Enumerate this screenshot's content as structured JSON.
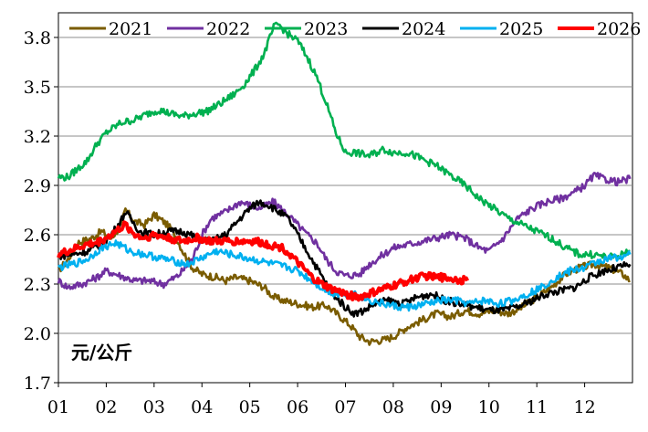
{
  "chart_data": {
    "type": "line",
    "title": "",
    "xlabel": "",
    "ylabel": "",
    "unit_label": "元/公斤",
    "x_ticks": [
      "01",
      "02",
      "03",
      "04",
      "05",
      "06",
      "07",
      "08",
      "09",
      "10",
      "11",
      "12"
    ],
    "x_range": [
      1,
      13
    ],
    "y_ticks": [
      "1.7",
      "2.0",
      "2.3",
      "2.6",
      "2.9",
      "3.2",
      "3.5",
      "3.8"
    ],
    "ylim": [
      1.7,
      3.95
    ],
    "grid": "horizontal",
    "legend": "top",
    "series": [
      {
        "name": "2021",
        "color": "#7a5c00",
        "x": [
          1.0,
          1.2,
          1.4,
          1.7,
          1.9,
          2.1,
          2.3,
          2.4,
          2.6,
          2.8,
          3.0,
          3.2,
          3.4,
          3.6,
          3.8,
          4.0,
          4.3,
          4.5,
          4.7,
          5.0,
          5.3,
          5.5,
          5.7,
          6.0,
          6.3,
          6.6,
          6.9,
          7.1,
          7.3,
          7.5,
          7.8,
          8.0,
          8.3,
          8.6,
          8.9,
          9.2,
          9.5,
          9.8,
          10.1,
          10.4,
          10.7,
          11.0,
          11.3,
          11.6,
          11.9,
          12.2,
          12.5,
          12.8,
          12.95
        ],
        "y": [
          2.38,
          2.45,
          2.55,
          2.58,
          2.62,
          2.58,
          2.65,
          2.75,
          2.68,
          2.66,
          2.72,
          2.68,
          2.62,
          2.5,
          2.4,
          2.36,
          2.34,
          2.32,
          2.34,
          2.32,
          2.28,
          2.22,
          2.2,
          2.18,
          2.16,
          2.17,
          2.1,
          2.05,
          1.98,
          1.95,
          1.96,
          1.98,
          2.04,
          2.08,
          2.12,
          2.1,
          2.14,
          2.12,
          2.14,
          2.12,
          2.16,
          2.22,
          2.28,
          2.36,
          2.4,
          2.42,
          2.4,
          2.36,
          2.32
        ]
      },
      {
        "name": "2022",
        "color": "#7030a0",
        "x": [
          1.0,
          1.2,
          1.5,
          1.8,
          2.0,
          2.3,
          2.6,
          2.9,
          3.2,
          3.5,
          3.8,
          4.0,
          4.2,
          4.5,
          4.8,
          5.0,
          5.2,
          5.5,
          5.8,
          6.0,
          6.2,
          6.4,
          6.6,
          6.8,
          7.0,
          7.3,
          7.5,
          7.8,
          8.0,
          8.3,
          8.6,
          8.9,
          9.2,
          9.5,
          9.8,
          10.0,
          10.3,
          10.6,
          10.9,
          11.2,
          11.5,
          11.8,
          12.0,
          12.2,
          12.4,
          12.7,
          12.95
        ],
        "y": [
          2.32,
          2.28,
          2.3,
          2.34,
          2.38,
          2.35,
          2.32,
          2.32,
          2.3,
          2.35,
          2.45,
          2.6,
          2.7,
          2.74,
          2.8,
          2.78,
          2.76,
          2.8,
          2.72,
          2.66,
          2.6,
          2.55,
          2.45,
          2.38,
          2.35,
          2.36,
          2.42,
          2.48,
          2.52,
          2.54,
          2.56,
          2.58,
          2.6,
          2.58,
          2.52,
          2.5,
          2.58,
          2.7,
          2.76,
          2.8,
          2.82,
          2.86,
          2.9,
          2.96,
          2.94,
          2.92,
          2.94
        ]
      },
      {
        "name": "2023",
        "color": "#00b050",
        "x": [
          1.0,
          1.2,
          1.4,
          1.6,
          1.8,
          2.0,
          2.3,
          2.6,
          2.9,
          3.1,
          3.3,
          3.6,
          3.9,
          4.1,
          4.4,
          4.7,
          4.9,
          5.1,
          5.3,
          5.4,
          5.5,
          5.6,
          5.8,
          6.0,
          6.2,
          6.4,
          6.6,
          6.8,
          7.0,
          7.2,
          7.5,
          7.8,
          8.0,
          8.3,
          8.6,
          8.9,
          9.2,
          9.5,
          9.8,
          10.1,
          10.4,
          10.7,
          11.0,
          11.3,
          11.6,
          11.9,
          12.2,
          12.5,
          12.8,
          12.95
        ],
        "y": [
          2.95,
          2.95,
          3.0,
          3.05,
          3.15,
          3.22,
          3.28,
          3.3,
          3.34,
          3.36,
          3.34,
          3.32,
          3.34,
          3.35,
          3.4,
          3.46,
          3.52,
          3.6,
          3.7,
          3.78,
          3.86,
          3.88,
          3.82,
          3.78,
          3.68,
          3.56,
          3.4,
          3.22,
          3.1,
          3.1,
          3.08,
          3.12,
          3.1,
          3.1,
          3.06,
          3.02,
          2.96,
          2.9,
          2.82,
          2.76,
          2.7,
          2.66,
          2.62,
          2.58,
          2.52,
          2.48,
          2.48,
          2.46,
          2.48,
          2.5
        ]
      },
      {
        "name": "2024",
        "color": "#000000",
        "x": [
          1.0,
          1.3,
          1.6,
          1.9,
          2.1,
          2.3,
          2.4,
          2.5,
          2.7,
          3.0,
          3.3,
          3.6,
          3.9,
          4.2,
          4.5,
          4.8,
          5.0,
          5.2,
          5.4,
          5.6,
          5.8,
          6.0,
          6.2,
          6.4,
          6.6,
          6.8,
          7.0,
          7.2,
          7.4,
          7.6,
          7.9,
          8.2,
          8.5,
          8.8,
          9.1,
          9.4,
          9.7,
          10.0,
          10.3,
          10.6,
          10.9,
          11.2,
          11.5,
          11.8,
          12.1,
          12.4,
          12.7,
          12.95
        ],
        "y": [
          2.47,
          2.48,
          2.5,
          2.54,
          2.6,
          2.68,
          2.74,
          2.7,
          2.62,
          2.6,
          2.62,
          2.62,
          2.58,
          2.56,
          2.6,
          2.7,
          2.76,
          2.8,
          2.78,
          2.74,
          2.7,
          2.6,
          2.5,
          2.4,
          2.3,
          2.22,
          2.16,
          2.12,
          2.14,
          2.18,
          2.2,
          2.18,
          2.22,
          2.24,
          2.2,
          2.18,
          2.16,
          2.14,
          2.14,
          2.16,
          2.2,
          2.24,
          2.26,
          2.28,
          2.34,
          2.38,
          2.4,
          2.42
        ]
      },
      {
        "name": "2025",
        "color": "#00b0f0",
        "x": [
          1.0,
          1.3,
          1.6,
          1.9,
          2.2,
          2.5,
          2.8,
          3.1,
          3.4,
          3.7,
          4.0,
          4.3,
          4.6,
          4.9,
          5.2,
          5.5,
          5.8,
          6.0,
          6.2,
          6.4,
          6.6,
          6.8,
          7.0,
          7.2,
          7.5,
          7.8,
          8.1,
          8.4,
          8.7,
          9.0,
          9.3,
          9.6,
          9.9,
          10.2,
          10.5,
          10.8,
          11.1,
          11.4,
          11.7,
          12.0,
          12.3,
          12.6,
          12.95
        ],
        "y": [
          2.4,
          2.42,
          2.45,
          2.52,
          2.55,
          2.5,
          2.48,
          2.46,
          2.44,
          2.42,
          2.46,
          2.5,
          2.48,
          2.46,
          2.44,
          2.42,
          2.4,
          2.38,
          2.34,
          2.3,
          2.26,
          2.24,
          2.24,
          2.24,
          2.2,
          2.18,
          2.16,
          2.16,
          2.18,
          2.2,
          2.2,
          2.18,
          2.2,
          2.18,
          2.2,
          2.24,
          2.28,
          2.34,
          2.38,
          2.4,
          2.44,
          2.46,
          2.48
        ]
      },
      {
        "name": "2026",
        "color": "#ff0000",
        "x": [
          1.0,
          1.2,
          1.4,
          1.6,
          1.8,
          2.0,
          2.2,
          2.4,
          2.6,
          2.8,
          3.0,
          3.3,
          3.6,
          3.9,
          4.2,
          4.5,
          4.8,
          5.1,
          5.4,
          5.7,
          5.9,
          6.1,
          6.3,
          6.5,
          6.7,
          6.9,
          7.1,
          7.3,
          7.5,
          7.7,
          7.9,
          8.1,
          8.3,
          8.5,
          8.7,
          8.9,
          9.1,
          9.3,
          9.55
        ],
        "y": [
          2.48,
          2.5,
          2.52,
          2.54,
          2.55,
          2.58,
          2.62,
          2.66,
          2.6,
          2.58,
          2.6,
          2.58,
          2.56,
          2.58,
          2.56,
          2.56,
          2.56,
          2.56,
          2.54,
          2.52,
          2.46,
          2.4,
          2.34,
          2.3,
          2.27,
          2.25,
          2.23,
          2.22,
          2.24,
          2.26,
          2.28,
          2.3,
          2.32,
          2.34,
          2.35,
          2.34,
          2.34,
          2.33,
          2.32
        ]
      }
    ]
  }
}
